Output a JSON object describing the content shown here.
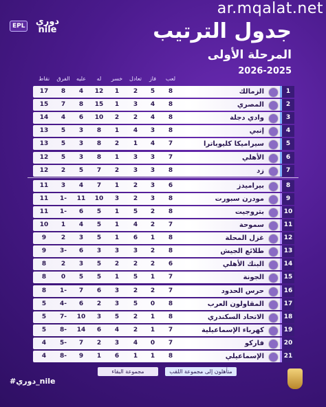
{
  "header": {
    "watermark": "ar.mqalat.net",
    "logo_badge": "EPL",
    "logo_text": "دوري\nnile",
    "title": "جدول الترتيب",
    "subtitle": "المرحلة الأولى",
    "season": "2026-2025"
  },
  "table": {
    "columns": [
      "نقاط",
      "الفرق",
      "عليه",
      "له",
      "خسر",
      "تعادل",
      "فاز",
      "لعب"
    ],
    "rows": [
      {
        "rank": 1,
        "team": "الزمالك",
        "stats": [
          17,
          "8",
          4,
          12,
          1,
          2,
          5,
          8
        ]
      },
      {
        "rank": 2,
        "team": "المصري",
        "stats": [
          15,
          "7",
          8,
          15,
          1,
          3,
          4,
          8
        ]
      },
      {
        "rank": 3,
        "team": "وادي دجلة",
        "stats": [
          14,
          "4",
          6,
          10,
          2,
          2,
          4,
          8
        ]
      },
      {
        "rank": 4,
        "team": "إنبي",
        "stats": [
          13,
          "5",
          3,
          8,
          1,
          4,
          3,
          8
        ]
      },
      {
        "rank": 5,
        "team": "سيراميكا كليوباترا",
        "stats": [
          13,
          "5",
          3,
          8,
          2,
          1,
          4,
          7
        ]
      },
      {
        "rank": 6,
        "team": "الأهلي",
        "stats": [
          12,
          "5",
          3,
          8,
          1,
          3,
          3,
          7
        ]
      },
      {
        "rank": 7,
        "team": "زد",
        "stats": [
          12,
          "2",
          5,
          7,
          2,
          3,
          3,
          8
        ]
      },
      {
        "rank": 8,
        "team": "بيراميدز",
        "stats": [
          11,
          "3",
          4,
          7,
          1,
          2,
          3,
          6
        ]
      },
      {
        "rank": 9,
        "team": "مودرن سبورت",
        "stats": [
          11,
          "1-",
          11,
          10,
          3,
          2,
          3,
          8
        ]
      },
      {
        "rank": 10,
        "team": "بتروجيت",
        "stats": [
          11,
          "1-",
          6,
          5,
          1,
          5,
          2,
          8
        ]
      },
      {
        "rank": 11,
        "team": "سموحة",
        "stats": [
          10,
          "1",
          4,
          5,
          1,
          4,
          2,
          7
        ]
      },
      {
        "rank": 12,
        "team": "غزل المحلة",
        "stats": [
          9,
          "2",
          3,
          5,
          1,
          6,
          1,
          8
        ]
      },
      {
        "rank": 13,
        "team": "طلائع الجيش",
        "stats": [
          9,
          "3-",
          6,
          3,
          3,
          3,
          2,
          8
        ]
      },
      {
        "rank": 14,
        "team": "البنك الأهلي",
        "stats": [
          8,
          "2",
          3,
          5,
          2,
          2,
          2,
          6
        ]
      },
      {
        "rank": 15,
        "team": "الجونة",
        "stats": [
          8,
          "0",
          5,
          5,
          1,
          5,
          1,
          7
        ]
      },
      {
        "rank": 16,
        "team": "حرس الحدود",
        "stats": [
          8,
          "1-",
          7,
          6,
          3,
          2,
          2,
          7
        ]
      },
      {
        "rank": 17,
        "team": "المقاولون العرب",
        "stats": [
          5,
          "4-",
          6,
          2,
          3,
          5,
          0,
          8
        ]
      },
      {
        "rank": 18,
        "team": "الاتحاد السكندري",
        "stats": [
          5,
          "7-",
          10,
          3,
          5,
          2,
          1,
          8
        ]
      },
      {
        "rank": 19,
        "team": "كهرباء الإسماعيلية",
        "stats": [
          5,
          "8-",
          14,
          6,
          4,
          2,
          1,
          7
        ]
      },
      {
        "rank": 20,
        "team": "فاركو",
        "stats": [
          4,
          "5-",
          7,
          2,
          3,
          4,
          0,
          7
        ]
      },
      {
        "rank": 21,
        "team": "الإسماعيلي",
        "stats": [
          4,
          "8-",
          9,
          1,
          6,
          1,
          1,
          8
        ]
      }
    ]
  },
  "legend": [
    "متأهلون إلى مجموعة اللقب",
    "مجموعة البقاء"
  ],
  "footer": {
    "hashtag": "#دوري_nile"
  }
}
